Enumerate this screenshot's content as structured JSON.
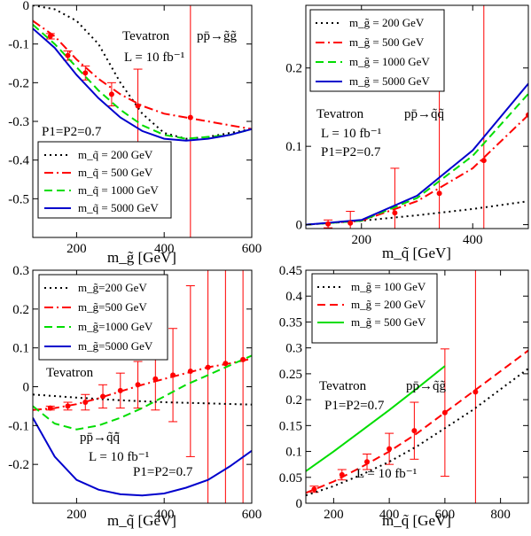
{
  "chart_data": [
    {
      "type": "line",
      "xlabel": "m_g̃ [GeV]",
      "xlim": [
        100,
        600
      ],
      "ylim": [
        -0.6,
        0
      ],
      "xticks": [
        200,
        400,
        600
      ],
      "yticks": [
        -0.5,
        -0.4,
        -0.3,
        -0.2,
        -0.1,
        0
      ],
      "annotations": [
        "Tevatron",
        "pp̄→g̃g̃",
        "L = 10 fb⁻¹",
        "P1=P2=0.7"
      ],
      "legend": "bottom-left",
      "series": [
        {
          "name": "m_q̃ = 200 GeV",
          "color": "#000000",
          "dash": "dot",
          "x": [
            100,
            150,
            200,
            250,
            300,
            350,
            400,
            450,
            500,
            550,
            600
          ],
          "y": [
            0,
            -0.01,
            -0.04,
            -0.1,
            -0.2,
            -0.28,
            -0.33,
            -0.345,
            -0.34,
            -0.33,
            -0.32
          ]
        },
        {
          "name": "m_q̃ = 500 GeV",
          "color": "#ff0000",
          "dash": "dashdot",
          "x": [
            100,
            150,
            200,
            250,
            300,
            350,
            400,
            450,
            500,
            550,
            600
          ],
          "y": [
            -0.04,
            -0.08,
            -0.14,
            -0.19,
            -0.23,
            -0.26,
            -0.28,
            -0.29,
            -0.3,
            -0.31,
            -0.32
          ]
        },
        {
          "name": "m_q̃ = 1000 GeV",
          "color": "#00dd00",
          "dash": "dash",
          "x": [
            100,
            150,
            200,
            250,
            300,
            350,
            400,
            450,
            500,
            550,
            600
          ],
          "y": [
            -0.05,
            -0.1,
            -0.16,
            -0.22,
            -0.27,
            -0.31,
            -0.335,
            -0.345,
            -0.34,
            -0.335,
            -0.32
          ]
        },
        {
          "name": "m_q̃ = 5000 GeV",
          "color": "#0000cc",
          "dash": "solid",
          "x": [
            100,
            150,
            200,
            250,
            300,
            350,
            400,
            450,
            500,
            550,
            600
          ],
          "y": [
            -0.06,
            -0.11,
            -0.18,
            -0.24,
            -0.29,
            -0.325,
            -0.345,
            -0.35,
            -0.345,
            -0.335,
            -0.32
          ]
        }
      ],
      "points": {
        "x": [
          140,
          180,
          220,
          280,
          340,
          460
        ],
        "y": [
          -0.08,
          -0.13,
          -0.175,
          -0.23,
          -0.26,
          -0.29
        ],
        "err": [
          0.007,
          0.012,
          0.018,
          0.03,
          0.095,
          0.8
        ]
      }
    },
    {
      "type": "line",
      "xlabel": "m_q̃ [GeV]",
      "xlim": [
        100,
        500
      ],
      "ylim": [
        -0.005,
        0.28
      ],
      "xticks": [
        200,
        400
      ],
      "yticks": [
        0,
        0.1,
        0.2
      ],
      "annotations": [
        "Tevatron",
        "pp̄→q̃q̃",
        "L = 10 fb⁻¹",
        "P1=P2=0.7"
      ],
      "legend": "top-left",
      "series": [
        {
          "name": "m_g̃ = 200 GeV",
          "color": "#000000",
          "dash": "dot",
          "x": [
            100,
            200,
            300,
            400,
            500
          ],
          "y": [
            0,
            0.005,
            0.012,
            0.02,
            0.03
          ]
        },
        {
          "name": "m_g̃ = 500 GeV",
          "color": "#ff0000",
          "dash": "dashdot",
          "x": [
            100,
            200,
            300,
            400,
            500
          ],
          "y": [
            0,
            0.005,
            0.03,
            0.072,
            0.14
          ]
        },
        {
          "name": "m_g̃ = 1000 GeV",
          "color": "#00dd00",
          "dash": "dash",
          "x": [
            100,
            200,
            300,
            400,
            500
          ],
          "y": [
            0,
            0.005,
            0.034,
            0.088,
            0.167
          ]
        },
        {
          "name": "m_g̃ = 5000 GeV",
          "color": "#0000cc",
          "dash": "solid",
          "x": [
            100,
            200,
            300,
            400,
            500
          ],
          "y": [
            0,
            0.006,
            0.037,
            0.095,
            0.18
          ]
        }
      ],
      "points": {
        "x": [
          140,
          180,
          260,
          340,
          420,
          500
        ],
        "y": [
          0.001,
          0.002,
          0.015,
          0.04,
          0.082,
          0.14
        ],
        "err": [
          0.005,
          0.015,
          0.057,
          0.2,
          0.4,
          0.4
        ]
      }
    },
    {
      "type": "line",
      "xlabel": "m_q̃ [GeV]",
      "xlim": [
        100,
        600
      ],
      "ylim": [
        -0.3,
        0.3
      ],
      "xticks": [
        200,
        400,
        600
      ],
      "yticks": [
        -0.2,
        -0.1,
        0,
        0.1,
        0.2,
        0.3
      ],
      "annotations": [
        "Tevatron",
        "pp̄→q̃q̃̄",
        "L = 10 fb⁻¹",
        "P1=P2=0.7"
      ],
      "legend": "top-left",
      "series": [
        {
          "name": "m_g̃=200 GeV",
          "color": "#000000",
          "dash": "dot",
          "x": [
            100,
            200,
            300,
            400,
            500,
            600
          ],
          "y": [
            -0.02,
            -0.028,
            -0.035,
            -0.04,
            -0.043,
            -0.046
          ]
        },
        {
          "name": "m_g̃=500 GeV",
          "color": "#ff0000",
          "dash": "dashdot",
          "x": [
            100,
            150,
            200,
            250,
            300,
            350,
            400,
            450,
            500,
            550,
            600
          ],
          "y": [
            -0.06,
            -0.055,
            -0.045,
            -0.03,
            -0.012,
            0.005,
            0.02,
            0.035,
            0.05,
            0.06,
            0.072
          ]
        },
        {
          "name": "m_g̃=1000 GeV",
          "color": "#00dd00",
          "dash": "dash",
          "x": [
            100,
            150,
            200,
            250,
            300,
            350,
            400,
            450,
            500,
            550,
            600
          ],
          "y": [
            -0.05,
            -0.095,
            -0.11,
            -0.1,
            -0.08,
            -0.055,
            -0.025,
            0.005,
            0.03,
            0.055,
            0.08
          ]
        },
        {
          "name": "m_g̃=5000 GeV",
          "color": "#0000cc",
          "dash": "solid",
          "x": [
            100,
            150,
            200,
            250,
            300,
            350,
            400,
            450,
            500,
            550,
            600
          ],
          "y": [
            -0.08,
            -0.18,
            -0.24,
            -0.265,
            -0.277,
            -0.28,
            -0.275,
            -0.26,
            -0.24,
            -0.205,
            -0.165
          ]
        }
      ],
      "points": {
        "x": [
          140,
          180,
          220,
          260,
          300,
          340,
          380,
          420,
          460,
          500,
          540,
          580
        ],
        "y": [
          -0.055,
          -0.05,
          -0.04,
          -0.025,
          -0.01,
          0.005,
          0.02,
          0.03,
          0.04,
          0.05,
          0.06,
          0.07
        ],
        "err": [
          0.005,
          0.01,
          0.02,
          0.03,
          0.045,
          0.06,
          0.08,
          0.12,
          0.22,
          0.4,
          0.4,
          0.4
        ]
      }
    },
    {
      "type": "line",
      "xlabel": "m_q̃ [GeV]",
      "xlim": [
        100,
        900
      ],
      "ylim": [
        0,
        0.45
      ],
      "xticks": [
        200,
        400,
        600,
        800
      ],
      "yticks": [
        0,
        0.05,
        0.1,
        0.15,
        0.2,
        0.25,
        0.3,
        0.35,
        0.4,
        0.45
      ],
      "annotations": [
        "Tevatron",
        "pp̄→q̃g̃",
        "L = 10 fb⁻¹",
        "P1=P2=0.7"
      ],
      "legend": "top-left",
      "series": [
        {
          "name": "m_g̃ = 100 GeV",
          "color": "#000000",
          "dash": "dot",
          "x": [
            100,
            200,
            300,
            400,
            500,
            600,
            700,
            800,
            900
          ],
          "y": [
            0.015,
            0.033,
            0.055,
            0.08,
            0.11,
            0.145,
            0.18,
            0.22,
            0.26
          ]
        },
        {
          "name": "m_g̃ = 200 GeV",
          "color": "#ff0000",
          "dash": "dash",
          "x": [
            100,
            200,
            300,
            400,
            500,
            600,
            700,
            800,
            900
          ],
          "y": [
            0.02,
            0.042,
            0.07,
            0.1,
            0.135,
            0.175,
            0.215,
            0.255,
            0.295
          ]
        },
        {
          "name": "m_g̃ = 500 GeV",
          "color": "#00dd00",
          "dash": "solid",
          "x": [
            100,
            200,
            300,
            400,
            500,
            600
          ],
          "y": [
            0.062,
            0.1,
            0.14,
            0.18,
            0.222,
            0.265
          ]
        }
      ],
      "points": {
        "x": [
          130,
          230,
          320,
          400,
          490,
          600,
          710
        ],
        "y": [
          0.027,
          0.055,
          0.08,
          0.105,
          0.14,
          0.175,
          0.215
        ],
        "err": [
          0.006,
          0.01,
          0.015,
          0.03,
          0.055,
          0.123,
          0.3
        ]
      }
    }
  ]
}
